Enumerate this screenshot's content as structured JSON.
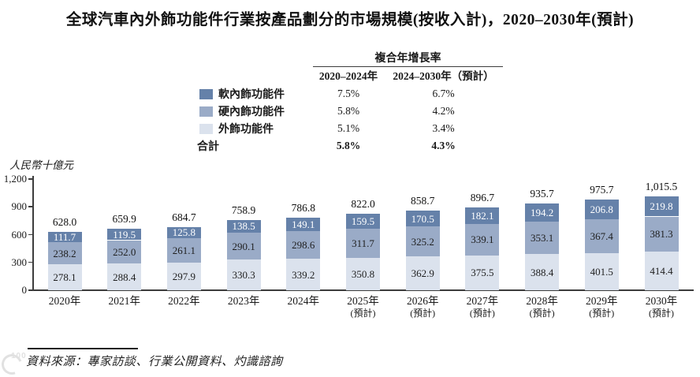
{
  "title": "全球汽車內外飾功能件行業按產品劃分的市場規模(按收入計)，2020–2030年(預計)",
  "cagr_table": {
    "header": "複合年增長率",
    "columns": [
      "2020–2024年",
      "2024–2030年（預計）"
    ],
    "rows": [
      {
        "label": "軟內飾功能件",
        "values": [
          "7.5%",
          "6.7%"
        ],
        "bold": false
      },
      {
        "label": "硬內飾功能件",
        "values": [
          "5.8%",
          "4.2%"
        ],
        "bold": false
      },
      {
        "label": "外飾功能件",
        "values": [
          "5.1%",
          "3.4%"
        ],
        "bold": false
      },
      {
        "label": "合計",
        "values": [
          "5.8%",
          "4.3%"
        ],
        "bold": true
      }
    ]
  },
  "legend": {
    "items": [
      {
        "label": "軟內飾功能件",
        "color": "#6581A9"
      },
      {
        "label": "硬內飾功能件",
        "color": "#9AABC7"
      },
      {
        "label": "外飾功能件",
        "color": "#DBE2ED"
      }
    ],
    "total_label": "合計"
  },
  "chart_data": {
    "type": "bar",
    "stacked": true,
    "title": "全球汽車內外飾功能件行業按產品劃分的市場規模(按收入計)，2020–2030年(預計)",
    "ylabel": "人民幣十億元",
    "xlabel": "",
    "ylim": [
      0,
      1200
    ],
    "grid": false,
    "legend_position": "upper-left",
    "yticks": [
      {
        "value": 0,
        "label": "0"
      },
      {
        "value": 300,
        "label": "300"
      },
      {
        "value": 600,
        "label": "600"
      },
      {
        "value": 900,
        "label": "900"
      },
      {
        "value": 1200,
        "label": "1,200"
      }
    ],
    "categories": [
      {
        "year": "2020年",
        "note": ""
      },
      {
        "year": "2021年",
        "note": ""
      },
      {
        "year": "2022年",
        "note": ""
      },
      {
        "year": "2023年",
        "note": ""
      },
      {
        "year": "2024年",
        "note": ""
      },
      {
        "year": "2025年",
        "note": "(預計)"
      },
      {
        "year": "2026年",
        "note": "(預計)"
      },
      {
        "year": "2027年",
        "note": "(預計)"
      },
      {
        "year": "2028年",
        "note": "(預計)"
      },
      {
        "year": "2029年",
        "note": "(預計)"
      },
      {
        "year": "2030年",
        "note": "(預計)"
      }
    ],
    "series": [
      {
        "name": "外飾功能件",
        "color": "#DBE2ED",
        "text_color": "#1f1f1f",
        "values": [
          278.1,
          288.4,
          297.9,
          330.3,
          339.2,
          350.8,
          362.9,
          375.5,
          388.4,
          401.5,
          414.4
        ]
      },
      {
        "name": "硬內飾功能件",
        "color": "#9AABC7",
        "text_color": "#1f1f1f",
        "values": [
          238.2,
          252.0,
          261.1,
          290.1,
          298.6,
          311.7,
          325.2,
          339.1,
          353.1,
          367.4,
          381.3
        ]
      },
      {
        "name": "軟內飾功能件",
        "color": "#6581A9",
        "text_color": "#ffffff",
        "values": [
          111.7,
          119.5,
          125.8,
          138.5,
          149.1,
          159.5,
          170.5,
          182.1,
          194.2,
          206.8,
          219.8
        ]
      }
    ],
    "totals": [
      "628.0",
      "659.9",
      "684.7",
      "758.9",
      "786.8",
      "822.0",
      "858.7",
      "896.7",
      "935.7",
      "975.7",
      "1,015.5"
    ]
  },
  "footer": {
    "source": "資料來源：專家訪談、行業公開資料、灼識諮詢"
  },
  "watermark": {
    "label": "100"
  }
}
